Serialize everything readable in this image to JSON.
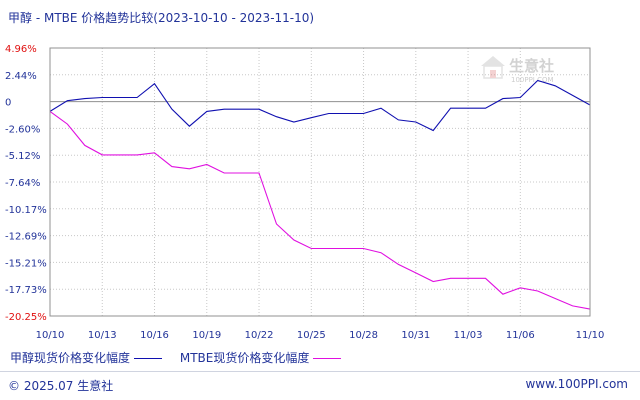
{
  "title": "甲醇 - MTBE 价格趋势比较(2023-10-10 - 2023-11-10)",
  "footer": {
    "copyright": "© 2025.07 生意社",
    "url": "www.100PPI.com"
  },
  "watermark": {
    "text": "生意社",
    "subtext": "100PPI.COM"
  },
  "colors": {
    "series1": "#1010b0",
    "series2": "#e010e0",
    "grid": "#c8c8c8",
    "zero_line": "#909090",
    "axis_text": "#223399",
    "extreme_text": "#e01010"
  },
  "chart_data": {
    "type": "line",
    "title": "甲醇 - MTBE 价格趋势比较(2023-10-10 - 2023-11-10)",
    "ylim": [
      -20.25,
      4.96
    ],
    "y_ticks": [
      "4.96%",
      "2.44%",
      "0",
      "-2.60%",
      "-5.12%",
      "-7.64%",
      "-10.17%",
      "-12.69%",
      "-15.21%",
      "-17.73%",
      "-20.25%"
    ],
    "x_tick_labels": [
      "10/10",
      "10/13",
      "10/16",
      "10/19",
      "10/22",
      "10/25",
      "10/28",
      "10/31",
      "11/03",
      "11/06",
      "11/10"
    ],
    "x": [
      "10/10",
      "10/11",
      "10/12",
      "10/13",
      "10/14",
      "10/15",
      "10/16",
      "10/17",
      "10/18",
      "10/19",
      "10/20",
      "10/21",
      "10/22",
      "10/23",
      "10/24",
      "10/25",
      "10/26",
      "10/27",
      "10/28",
      "10/29",
      "10/30",
      "10/31",
      "11/01",
      "11/02",
      "11/03",
      "11/04",
      "11/05",
      "11/06",
      "11/07",
      "11/08",
      "11/09",
      "11/10"
    ],
    "series": [
      {
        "name": "甲醇现货价格变化幅度",
        "color": "#1010b0",
        "values": [
          -1.0,
          0.0,
          0.2,
          0.3,
          0.3,
          0.3,
          1.6,
          -0.8,
          -2.4,
          -1.0,
          -0.8,
          -0.8,
          -0.8,
          -1.5,
          -2.0,
          -1.6,
          -1.2,
          -1.2,
          -1.2,
          -0.7,
          -1.8,
          -2.0,
          -2.8,
          -0.7,
          -0.7,
          -0.7,
          0.2,
          0.3,
          1.9,
          1.4,
          0.5,
          -0.4
        ]
      },
      {
        "name": "MTBE现货价格变化幅度",
        "color": "#e010e0",
        "values": [
          -1.0,
          -2.2,
          -4.2,
          -5.1,
          -5.1,
          -5.1,
          -4.9,
          -6.2,
          -6.4,
          -6.0,
          -6.8,
          -6.8,
          -6.8,
          -11.6,
          -13.1,
          -13.9,
          -13.9,
          -13.9,
          -13.9,
          -14.3,
          -15.4,
          -16.2,
          -17.0,
          -16.7,
          -16.7,
          -16.7,
          -18.2,
          -17.6,
          -17.9,
          -18.6,
          -19.3,
          -19.6
        ]
      }
    ],
    "legend": "bottom-left"
  }
}
